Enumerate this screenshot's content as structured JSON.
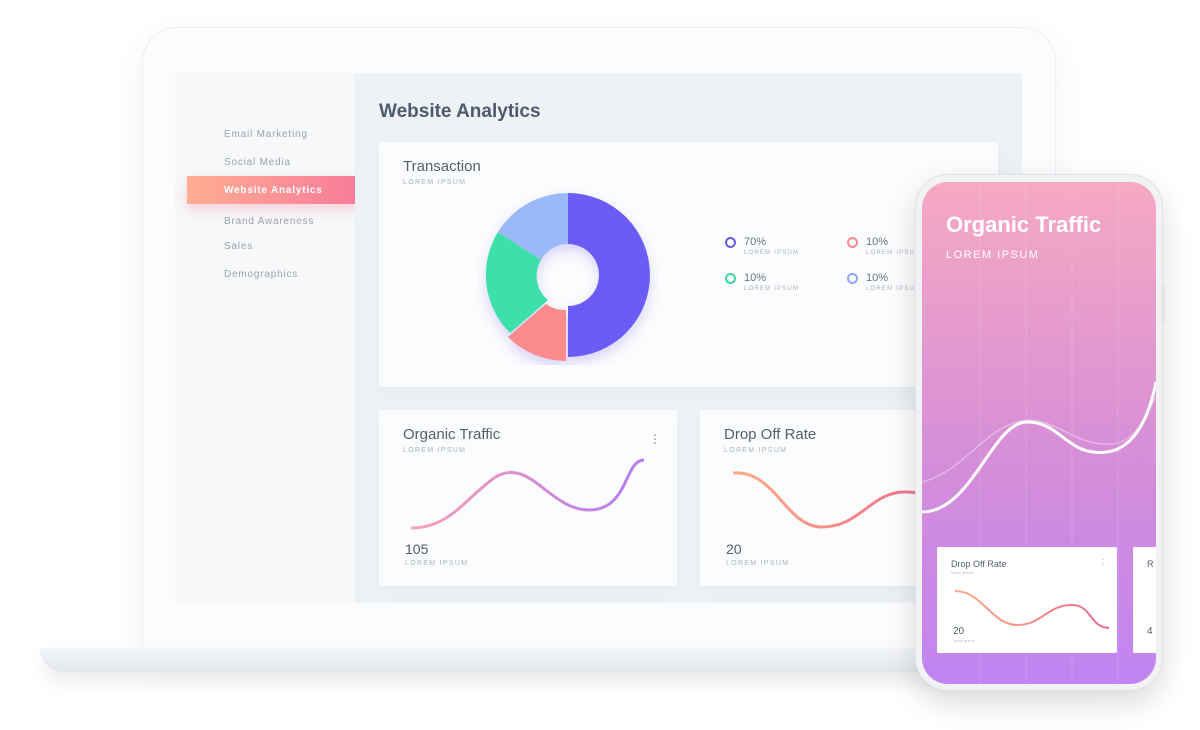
{
  "sidebar": {
    "items": [
      {
        "label": "Email Marketing"
      },
      {
        "label": "Social Media"
      },
      {
        "label": "Website Analytics",
        "active": true
      },
      {
        "label": "Brand Awareness"
      },
      {
        "label": "Sales"
      },
      {
        "label": "Demographics"
      }
    ]
  },
  "header": {
    "title": "Website Analytics"
  },
  "transaction": {
    "title": "Transaction",
    "subtitle": "LOREM IPSUM",
    "legend": [
      {
        "value": "70%",
        "label": "LOREM IPSUM",
        "color": "#6c5ce7"
      },
      {
        "value": "10%",
        "label": "LOREM IPSUM",
        "color": "#f78a8f"
      },
      {
        "value": "10%",
        "label": "LOREM IPSUM",
        "color": "#3fd6a6"
      },
      {
        "value": "10%",
        "label": "LOREM IPSUM",
        "color": "#8fa6f5"
      }
    ]
  },
  "organic": {
    "title": "Organic Traffic",
    "subtitle": "LOREM IPSUM",
    "value": "105",
    "value_label": "LOREM IPSUM",
    "menu": "⋮"
  },
  "dropoff": {
    "title": "Drop Off Rate",
    "subtitle": "LOREM IPSUM",
    "value": "20",
    "value_label": "LOREM IPSUM"
  },
  "phone": {
    "title": "Organic Traffic",
    "subtitle": "LOREM IPSUM",
    "card1": {
      "title": "Drop Off Rate",
      "subtitle": "lorem ipsum",
      "value": "20",
      "value_label": "lorem ipsum",
      "menu": "⋮"
    },
    "card2": {
      "title": "R",
      "value": "4"
    }
  }
}
